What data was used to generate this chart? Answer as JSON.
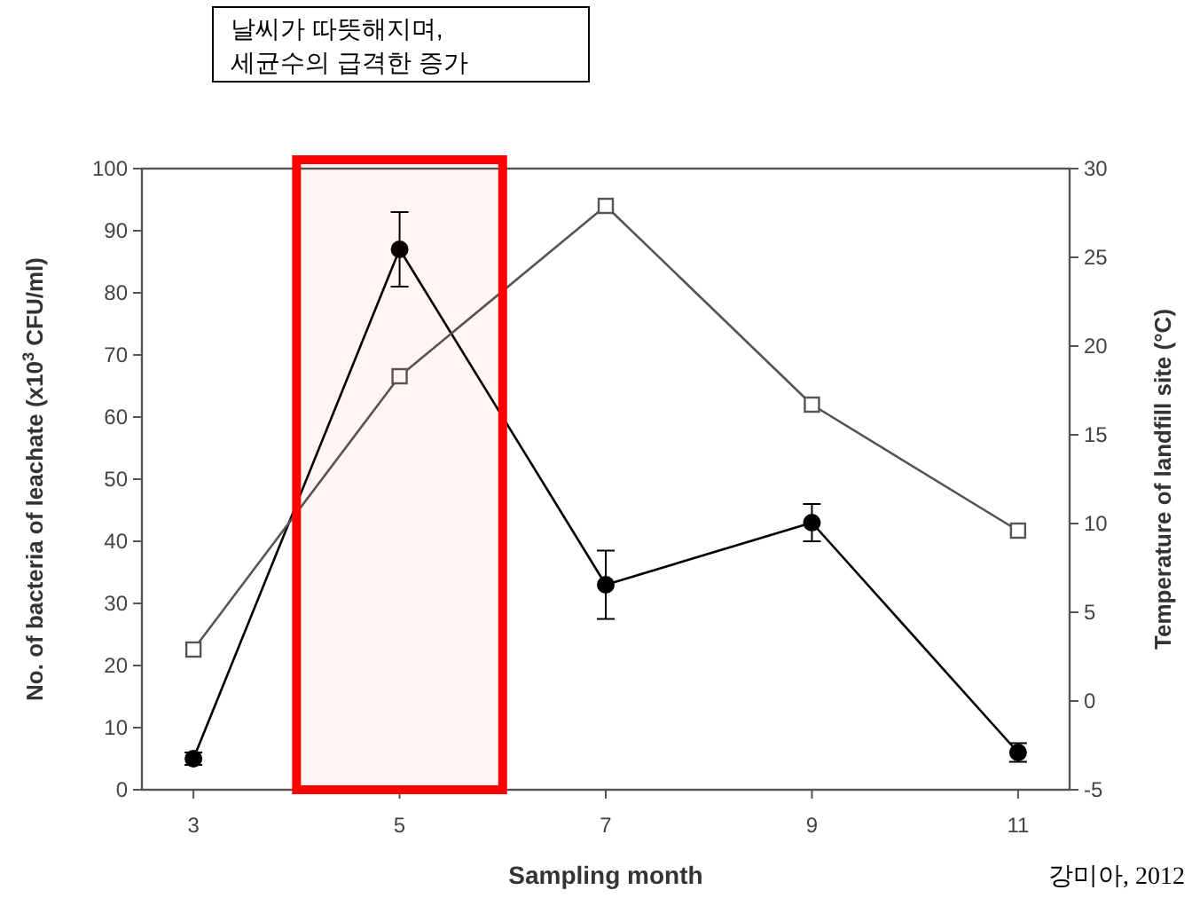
{
  "chart_data": {
    "type": "line",
    "xlabel": "Sampling month",
    "ylabel": "No. of bacteria of leachate (x10$^{3}$ CFU/ml)",
    "y2label": "Temperature of landfill site (°C)",
    "x": [
      3,
      5,
      7,
      9,
      11
    ],
    "xlim": [
      2.5,
      11.5
    ],
    "xticks": [
      3,
      5,
      7,
      9,
      11
    ],
    "ylim": [
      0,
      100
    ],
    "yticks": [
      0,
      10,
      20,
      30,
      40,
      50,
      60,
      70,
      80,
      90,
      100
    ],
    "y2lim": [
      -5,
      30
    ],
    "y2ticks": [
      -5,
      0,
      5,
      10,
      15,
      20,
      25,
      30
    ],
    "series": [
      {
        "color": "#000000",
        "marker": "circle",
        "values": [
          5,
          87,
          33,
          43,
          6
        ],
        "errors": [
          1,
          6,
          5.5,
          3,
          1.5
        ]
      },
      {
        "color": "#555555",
        "marker": "square",
        "axis": "y2",
        "values": [
          2.9,
          18.3,
          27.9,
          16.7,
          9.6
        ]
      }
    ],
    "bands": [
      {
        "axis": "x",
        "from": 4,
        "to": 6,
        "color": "#ff0000"
      }
    ],
    "annotations": [
      "날씨가 따뜻해지며,\n세균수의 급격한 증가",
      "강미아, 2012"
    ],
    "grid": false
  }
}
